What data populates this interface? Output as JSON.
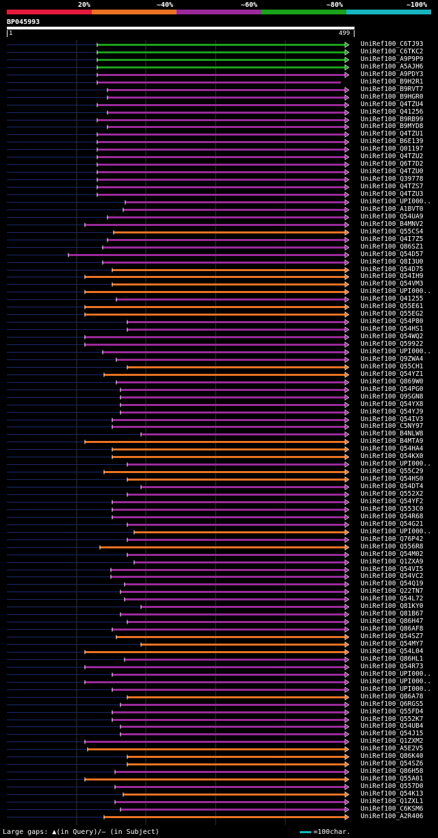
{
  "legend": {
    "colors": [
      "#e31a3c",
      "#ea7222",
      "#9a2a9a",
      "#1aa01a",
      "#17b5c0"
    ],
    "labels": [
      "20%",
      "~40%",
      "~60%",
      "~80%",
      "~100%"
    ]
  },
  "query": {
    "id": "BP045993",
    "start": "1",
    "end": "499",
    "length": 499
  },
  "footer": {
    "left": "Large gaps: ▲(in Query)/– (in Subject)",
    "right": "=100char."
  },
  "hits": [
    {
      "label": "UniRef100_C6TJ93",
      "start": 142,
      "color": "#1aa01a",
      "arrow": true
    },
    {
      "label": "UniRef100_C6TKC2",
      "start": 142,
      "color": "#1aa01a",
      "arrow": true
    },
    {
      "label": "UniRef100_A9P9P9",
      "start": 142,
      "color": "#1aa01a",
      "arrow": true
    },
    {
      "label": "UniRef100_A5AJH6",
      "start": 142,
      "color": "#1aa01a",
      "arrow": true
    },
    {
      "label": "UniRef100_A9PDY3",
      "start": 142,
      "color": "#9a2a9a",
      "arrow": true
    },
    {
      "label": "UniRef100_B9H2R1",
      "start": 142,
      "color": "#9a2a9a",
      "arrow": false
    },
    {
      "label": "UniRef100_B9RVT7",
      "start": 157,
      "color": "#9a2a9a",
      "arrow": true
    },
    {
      "label": "UniRef100_B9HGR0",
      "start": 157,
      "color": "#9a2a9a",
      "arrow": true
    },
    {
      "label": "UniRef100_Q4TZU4",
      "start": 142,
      "color": "#9a2a9a",
      "arrow": true
    },
    {
      "label": "UniRef100_Q41256",
      "start": 157,
      "color": "#9a2a9a",
      "arrow": true
    },
    {
      "label": "UniRef100_B9RB99",
      "start": 142,
      "color": "#9a2a9a",
      "arrow": true
    },
    {
      "label": "UniRef100_B9MYD8",
      "start": 157,
      "color": "#9a2a9a",
      "arrow": true
    },
    {
      "label": "UniRef100_Q4TZU1",
      "start": 142,
      "color": "#9a2a9a",
      "arrow": true
    },
    {
      "label": "UniRef100_B6E139",
      "start": 142,
      "color": "#9a2a9a",
      "arrow": true
    },
    {
      "label": "UniRef100_Q01197",
      "start": 142,
      "color": "#9a2a9a",
      "arrow": true
    },
    {
      "label": "UniRef100_Q4TZU2",
      "start": 142,
      "color": "#9a2a9a",
      "arrow": true
    },
    {
      "label": "UniRef100_Q6T7D2",
      "start": 142,
      "color": "#9a2a9a",
      "arrow": true
    },
    {
      "label": "UniRef100_Q4TZU0",
      "start": 142,
      "color": "#9a2a9a",
      "arrow": true
    },
    {
      "label": "UniRef100_Q39778",
      "start": 142,
      "color": "#9a2a9a",
      "arrow": true
    },
    {
      "label": "UniRef100_Q4TZS7",
      "start": 142,
      "color": "#9a2a9a",
      "arrow": true
    },
    {
      "label": "UniRef100_Q4TZU3",
      "start": 142,
      "color": "#9a2a9a",
      "arrow": true
    },
    {
      "label": "UniRef100_UPI000..",
      "start": 183,
      "color": "#9a2a9a",
      "arrow": true
    },
    {
      "label": "UniRef100_A1BVT0",
      "start": 180,
      "color": "#9a2a9a",
      "arrow": true
    },
    {
      "label": "UniRef100_Q54UA9",
      "start": 157,
      "color": "#9a2a9a",
      "arrow": true
    },
    {
      "label": "UniRef100_B4MNV2",
      "start": 124,
      "color": "#9a2a9a",
      "arrow": true
    },
    {
      "label": "UniRef100_Q55CS4",
      "start": 166,
      "color": "#ea7222",
      "arrow": true
    },
    {
      "label": "UniRef100_Q4I7Z5",
      "start": 157,
      "color": "#9a2a9a",
      "arrow": true
    },
    {
      "label": "UniRef100_Q86SZ1",
      "start": 150,
      "color": "#9a2a9a",
      "arrow": true
    },
    {
      "label": "UniRef100_Q54D57",
      "start": 100,
      "color": "#9a2a9a",
      "arrow": true
    },
    {
      "label": "UniRef100_Q8I3U0",
      "start": 150,
      "color": "#9a2a9a",
      "arrow": true
    },
    {
      "label": "UniRef100_Q54D75",
      "start": 164,
      "color": "#ea7222",
      "arrow": true
    },
    {
      "label": "UniRef100_Q54IH9",
      "start": 124,
      "color": "#ea7222",
      "arrow": true
    },
    {
      "label": "UniRef100_Q54VM3",
      "start": 164,
      "color": "#ea7222",
      "arrow": true
    },
    {
      "label": "UniRef100_UPI000..",
      "start": 124,
      "color": "#ea7222",
      "arrow": true
    },
    {
      "label": "UniRef100_Q41255",
      "start": 170,
      "color": "#9a2a9a",
      "arrow": true
    },
    {
      "label": "UniRef100_Q55E61",
      "start": 124,
      "color": "#ea7222",
      "arrow": true
    },
    {
      "label": "UniRef100_Q55EG2",
      "start": 124,
      "color": "#ea7222",
      "arrow": true
    },
    {
      "label": "UniRef100_Q54P80",
      "start": 186,
      "color": "#9a2a9a",
      "arrow": true
    },
    {
      "label": "UniRef100_Q54HS1",
      "start": 186,
      "color": "#9a2a9a",
      "arrow": true
    },
    {
      "label": "UniRef100_Q54WQ2",
      "start": 124,
      "color": "#9a2a9a",
      "arrow": true
    },
    {
      "label": "UniRef100_Q59922",
      "start": 124,
      "color": "#9a2a9a",
      "arrow": true
    },
    {
      "label": "UniRef100_UPI000..",
      "start": 150,
      "color": "#9a2a9a",
      "arrow": true
    },
    {
      "label": "UniRef100_Q9ZWA4",
      "start": 170,
      "color": "#9a2a9a",
      "arrow": true
    },
    {
      "label": "UniRef100_Q55CH1",
      "start": 186,
      "color": "#ea7222",
      "arrow": true
    },
    {
      "label": "UniRef100_Q54YZ1",
      "start": 152,
      "color": "#ea7222",
      "arrow": true
    },
    {
      "label": "UniRef100_Q869W0",
      "start": 170,
      "color": "#9a2a9a",
      "arrow": true
    },
    {
      "label": "UniRef100_Q54PG0",
      "start": 176,
      "color": "#9a2a9a",
      "arrow": true
    },
    {
      "label": "UniRef100_Q9SGN8",
      "start": 176,
      "color": "#9a2a9a",
      "arrow": true
    },
    {
      "label": "UniRef100_Q54YX8",
      "start": 176,
      "color": "#9a2a9a",
      "arrow": true
    },
    {
      "label": "UniRef100_Q54YJ9",
      "start": 176,
      "color": "#9a2a9a",
      "arrow": true
    },
    {
      "label": "UniRef100_Q54IV3",
      "start": 164,
      "color": "#9a2a9a",
      "arrow": true
    },
    {
      "label": "UniRef100_C5NY97",
      "start": 164,
      "color": "#9a2a9a",
      "arrow": true
    },
    {
      "label": "UniRef100_B4NLW8",
      "start": 206,
      "color": "#9a2a9a",
      "arrow": true
    },
    {
      "label": "UniRef100_B4MTA9",
      "start": 124,
      "color": "#ea7222",
      "arrow": true
    },
    {
      "label": "UniRef100_Q54HA4",
      "start": 164,
      "color": "#ea7222",
      "arrow": true
    },
    {
      "label": "UniRef100_Q54KX0",
      "start": 164,
      "color": "#ea7222",
      "arrow": true
    },
    {
      "label": "UniRef100_UPI000..",
      "start": 186,
      "color": "#9a2a9a",
      "arrow": true
    },
    {
      "label": "UniRef100_Q55C29",
      "start": 152,
      "color": "#ea7222",
      "arrow": true
    },
    {
      "label": "UniRef100_Q54HS0",
      "start": 186,
      "color": "#ea7222",
      "arrow": true
    },
    {
      "label": "UniRef100_Q54DT4",
      "start": 206,
      "color": "#9a2a9a",
      "arrow": true
    },
    {
      "label": "UniRef100_Q552X2",
      "start": 186,
      "color": "#9a2a9a",
      "arrow": true
    },
    {
      "label": "UniRef100_Q54YF2",
      "start": 164,
      "color": "#9a2a9a",
      "arrow": true
    },
    {
      "label": "UniRef100_Q553C0",
      "start": 164,
      "color": "#9a2a9a",
      "arrow": true
    },
    {
      "label": "UniRef100_Q54R68",
      "start": 164,
      "color": "#9a2a9a",
      "arrow": true
    },
    {
      "label": "UniRef100_Q54G21",
      "start": 186,
      "color": "#9a2a9a",
      "arrow": true
    },
    {
      "label": "UniRef100_UPI000..",
      "start": 196,
      "color": "#ea7222",
      "arrow": true
    },
    {
      "label": "UniRef100_Q76P42",
      "start": 186,
      "color": "#9a2a9a",
      "arrow": true
    },
    {
      "label": "UniRef100_Q556R8",
      "start": 146,
      "color": "#ea7222",
      "arrow": true
    },
    {
      "label": "UniRef100_Q54M02",
      "start": 186,
      "color": "#9a2a9a",
      "arrow": true
    },
    {
      "label": "UniRef100_Q1ZXA9",
      "start": 196,
      "color": "#9a2a9a",
      "arrow": true
    },
    {
      "label": "UniRef100_Q54VI5",
      "start": 162,
      "color": "#9a2a9a",
      "arrow": true
    },
    {
      "label": "UniRef100_Q54VC2",
      "start": 162,
      "color": "#9a2a9a",
      "arrow": true
    },
    {
      "label": "UniRef100_Q54Q19",
      "start": 182,
      "color": "#9a2a9a",
      "arrow": true
    },
    {
      "label": "UniRef100_Q22TN7",
      "start": 176,
      "color": "#9a2a9a",
      "arrow": true
    },
    {
      "label": "UniRef100_Q54L72",
      "start": 182,
      "color": "#9a2a9a",
      "arrow": true
    },
    {
      "label": "UniRef100_Q81KY0",
      "start": 206,
      "color": "#9a2a9a",
      "arrow": true
    },
    {
      "label": "UniRef100_Q81B67",
      "start": 176,
      "color": "#9a2a9a",
      "arrow": true
    },
    {
      "label": "UniRef100_Q86H47",
      "start": 186,
      "color": "#9a2a9a",
      "arrow": true
    },
    {
      "label": "UniRef100_Q86AF8",
      "start": 164,
      "color": "#9a2a9a",
      "arrow": true
    },
    {
      "label": "UniRef100_Q54SZ7",
      "start": 170,
      "color": "#ea7222",
      "arrow": true
    },
    {
      "label": "UniRef100_Q54MY7",
      "start": 206,
      "color": "#ea7222",
      "arrow": true
    },
    {
      "label": "UniRef100_Q54L04",
      "start": 124,
      "color": "#ea7222",
      "arrow": true
    },
    {
      "label": "UniRef100_Q86HL1",
      "start": 182,
      "color": "#9a2a9a",
      "arrow": true
    },
    {
      "label": "UniRef100_Q54R73",
      "start": 124,
      "color": "#9a2a9a",
      "arrow": true
    },
    {
      "label": "UniRef100_UPI000..",
      "start": 164,
      "color": "#9a2a9a",
      "arrow": true
    },
    {
      "label": "UniRef100_UPI000..",
      "start": 124,
      "color": "#9a2a9a",
      "arrow": true
    },
    {
      "label": "UniRef100_UPI000..",
      "start": 164,
      "color": "#9a2a9a",
      "arrow": true
    },
    {
      "label": "UniRef100_Q86A78",
      "start": 186,
      "color": "#ea7222",
      "arrow": true
    },
    {
      "label": "UniRef100_Q6RGS5",
      "start": 176,
      "color": "#9a2a9a",
      "arrow": true
    },
    {
      "label": "UniRef100_Q55FD4",
      "start": 164,
      "color": "#9a2a9a",
      "arrow": true
    },
    {
      "label": "UniRef100_Q552K7",
      "start": 164,
      "color": "#9a2a9a",
      "arrow": true
    },
    {
      "label": "UniRef100_Q54UB4",
      "start": 176,
      "color": "#9a2a9a",
      "arrow": true
    },
    {
      "label": "UniRef100_Q54J15",
      "start": 176,
      "color": "#9a2a9a",
      "arrow": true
    },
    {
      "label": "UniRef100_Q1ZXM2",
      "start": 124,
      "color": "#9a2a9a",
      "arrow": true
    },
    {
      "label": "UniRef100_A5E2V5",
      "start": 128,
      "color": "#ea7222",
      "arrow": true
    },
    {
      "label": "UniRef100_Q86K40",
      "start": 186,
      "color": "#ea7222",
      "arrow": true
    },
    {
      "label": "UniRef100_Q54SZ6",
      "start": 186,
      "color": "#ea7222",
      "arrow": true
    },
    {
      "label": "UniRef100_Q86H58",
      "start": 168,
      "color": "#9a2a9a",
      "arrow": true
    },
    {
      "label": "UniRef100_Q55A01",
      "start": 124,
      "color": "#ea7222",
      "arrow": true
    },
    {
      "label": "UniRef100_Q557D0",
      "start": 168,
      "color": "#9a2a9a",
      "arrow": true
    },
    {
      "label": "UniRef100_Q54K13",
      "start": 180,
      "color": "#ea7222",
      "arrow": true
    },
    {
      "label": "UniRef100_Q1ZXL1",
      "start": 168,
      "color": "#9a2a9a",
      "arrow": true
    },
    {
      "label": "UniRef100_C6KSM6",
      "start": 176,
      "color": "#9a2a9a",
      "arrow": true
    },
    {
      "label": "UniRef100_A2R406",
      "start": 152,
      "color": "#ea7222",
      "arrow": true
    }
  ]
}
